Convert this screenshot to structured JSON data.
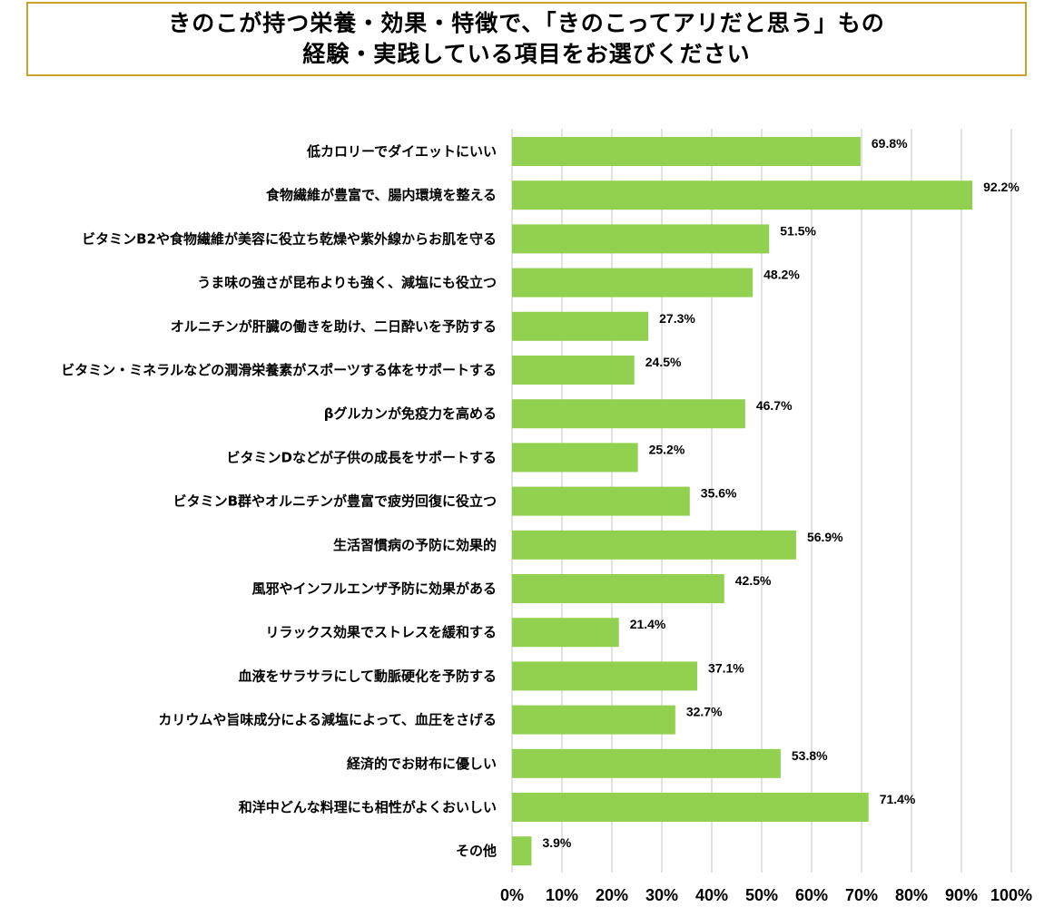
{
  "title": {
    "line1": "きのこが持つ栄養・効果・特徴で、「きのこってアリだと思う」もの",
    "line2": "経験・実践している項目をお選びください"
  },
  "chart_data": {
    "type": "bar",
    "orientation": "horizontal",
    "categories": [
      "低カロリーでダイエットにいい",
      "食物繊維が豊富で、腸内環境を整える",
      "ビタミンB2や食物繊維が美容に役立ち乾燥や紫外線からお肌を守る",
      "うま味の強さが昆布よりも強く、減塩にも役立つ",
      "オルニチンが肝臓の働きを助け、二日酔いを予防する",
      "ビタミン・ミネラルなどの潤滑栄養素がスポーツする体をサポートする",
      "βグルカンが免疫力を高める",
      "ビタミンDなどが子供の成長をサポートする",
      "ビタミンB群やオルニチンが豊富で疲労回復に役立つ",
      "生活習慣病の予防に効果的",
      "風邪やインフルエンザ予防に効果がある",
      "リラックス効果でストレスを緩和する",
      "血液をサラサラにして動脈硬化を予防する",
      "カリウムや旨味成分による減塩によって、血圧をさげる",
      "経済的でお財布に優しい",
      "和洋中どんな料理にも相性がよくおいしい",
      "その他"
    ],
    "values": [
      69.8,
      92.2,
      51.5,
      48.2,
      27.3,
      24.5,
      46.7,
      25.2,
      35.6,
      56.9,
      42.5,
      21.4,
      37.1,
      32.7,
      53.8,
      71.4,
      3.9
    ],
    "value_labels": [
      "69.8%",
      "92.2%",
      "51.5%",
      "48.2%",
      "27.3%",
      "24.5%",
      "46.7%",
      "25.2%",
      "35.6%",
      "56.9%",
      "42.5%",
      "21.4%",
      "37.1%",
      "32.7%",
      "53.8%",
      "71.4%",
      "3.9%"
    ],
    "xlim": [
      0,
      100
    ],
    "x_ticks": [
      0,
      10,
      20,
      30,
      40,
      50,
      60,
      70,
      80,
      90,
      100
    ],
    "x_tick_labels": [
      "0%",
      "10%",
      "20%",
      "30%",
      "40%",
      "50%",
      "60%",
      "70%",
      "80%",
      "90%",
      "100%"
    ],
    "xlabel": "",
    "ylabel": "",
    "grid": true,
    "legend": "none",
    "bar_color": "#92d050",
    "grid_color": "#d9d9d9",
    "title_border_color": "#c9a227"
  }
}
